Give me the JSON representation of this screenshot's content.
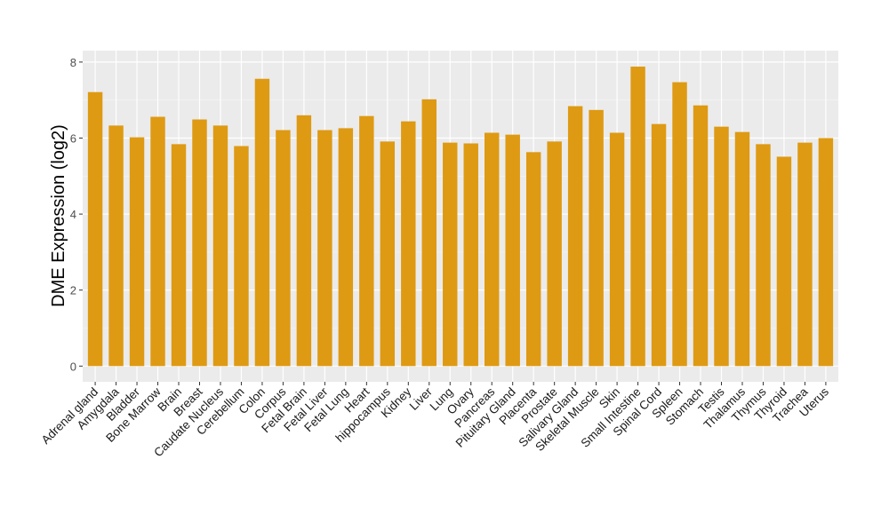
{
  "chart_data": {
    "type": "bar",
    "title": "",
    "xlabel": "",
    "ylabel": "DME Expression (log2)",
    "ylim": [
      -0.35,
      8.3
    ],
    "yticks": [
      0,
      2,
      4,
      6,
      8
    ],
    "grid": true,
    "bar_color": "#DE9A13",
    "categories": [
      "Adrenal gland",
      "Amygdala",
      "Bladder",
      "Bone Marrow",
      "Brain",
      "Breast",
      "Caudate Nucleus",
      "Cerebellum",
      "Colon",
      "Corpus",
      "Fetal Brain",
      "Fetal Liver",
      "Fetal Lung",
      "Heart",
      "hippocampus",
      "Kidney",
      "Liver",
      "Lung",
      "Ovary",
      "Pancreas",
      "Pituitary Gland",
      "Placenta",
      "Prostate",
      "Salivary Gland",
      "Skeletal Muscle",
      "Skin",
      "Small Intestine",
      "Spinal Cord",
      "Spleen",
      "Stomach",
      "Testis",
      "Thalamus",
      "Thymus",
      "Thyroid",
      "Trachea",
      "Uterus"
    ],
    "values": [
      7.21,
      6.33,
      6.02,
      6.56,
      5.84,
      6.49,
      6.33,
      5.79,
      7.56,
      6.21,
      6.6,
      6.21,
      6.26,
      6.58,
      5.91,
      6.44,
      7.02,
      5.88,
      5.86,
      6.14,
      6.09,
      5.63,
      5.91,
      6.84,
      6.74,
      6.14,
      7.88,
      6.37,
      7.47,
      6.86,
      6.3,
      6.16,
      5.84,
      5.51,
      5.88,
      6.0
    ]
  }
}
